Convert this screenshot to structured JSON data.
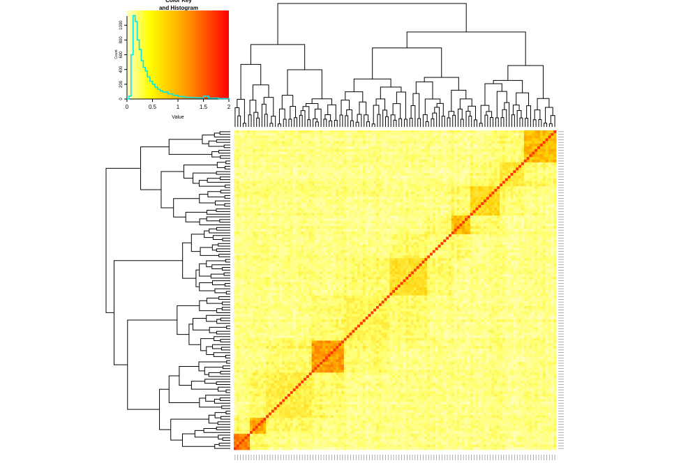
{
  "chart_data": [
    {
      "type": "area",
      "title": "Color Key\nand Histogram",
      "xlabel": "Value",
      "ylabel": "Count",
      "xlim": [
        0,
        2
      ],
      "ylim": [
        0,
        1200
      ],
      "x_ticks": [
        0,
        0.5,
        1,
        1.5,
        2
      ],
      "x_tick_labels": [
        "0",
        "0.5",
        "1",
        "1.5",
        "2"
      ],
      "y_ticks": [
        0,
        200,
        400,
        600,
        800,
        1000
      ],
      "y_tick_labels": [
        "0",
        "200",
        "400",
        "600",
        "800",
        "1000"
      ],
      "color_scale": [
        "#ffffcc",
        "#ffff00",
        "#ffa500",
        "#ff0000"
      ],
      "histogram_color": "#00e5e5",
      "series": [
        {
          "x": [
            0.0,
            0.04,
            0.08,
            0.12,
            0.16,
            0.2,
            0.24,
            0.28,
            0.32,
            0.36,
            0.4,
            0.45,
            0.5,
            0.55,
            0.6,
            0.65,
            0.7,
            0.8,
            0.9,
            1.0,
            1.1,
            1.2,
            1.3,
            1.4,
            1.5,
            1.6,
            1.8,
            2.0
          ],
          "values": [
            0,
            40,
            600,
            1130,
            1050,
            800,
            670,
            520,
            430,
            380,
            300,
            240,
            200,
            160,
            130,
            110,
            95,
            70,
            50,
            35,
            25,
            20,
            18,
            15,
            40,
            12,
            5,
            0
          ]
        }
      ]
    },
    {
      "type": "heatmap",
      "title": "",
      "xlabel": "",
      "ylabel": "",
      "color_scale": [
        "#fffde0",
        "#ffff66",
        "#ffcc00",
        "#ff4500"
      ],
      "diagonal_color": "#ff3300",
      "row_dendrogram": "left",
      "column_dendrogram": "top",
      "blocks": [
        {
          "from": 0.0,
          "to": 0.05,
          "level": 0.85
        },
        {
          "from": 0.05,
          "to": 0.1,
          "level": 0.75
        },
        {
          "from": 0.1,
          "to": 0.24,
          "level": 0.45
        },
        {
          "from": 0.24,
          "to": 0.34,
          "level": 0.8
        },
        {
          "from": 0.34,
          "to": 0.48,
          "level": 0.4
        },
        {
          "from": 0.48,
          "to": 0.6,
          "level": 0.55
        },
        {
          "from": 0.6,
          "to": 0.67,
          "level": 0.3
        },
        {
          "from": 0.67,
          "to": 0.73,
          "level": 0.72
        },
        {
          "from": 0.73,
          "to": 0.82,
          "level": 0.6
        },
        {
          "from": 0.82,
          "to": 0.9,
          "level": 0.5
        },
        {
          "from": 0.9,
          "to": 1.0,
          "level": 0.7
        }
      ]
    }
  ]
}
